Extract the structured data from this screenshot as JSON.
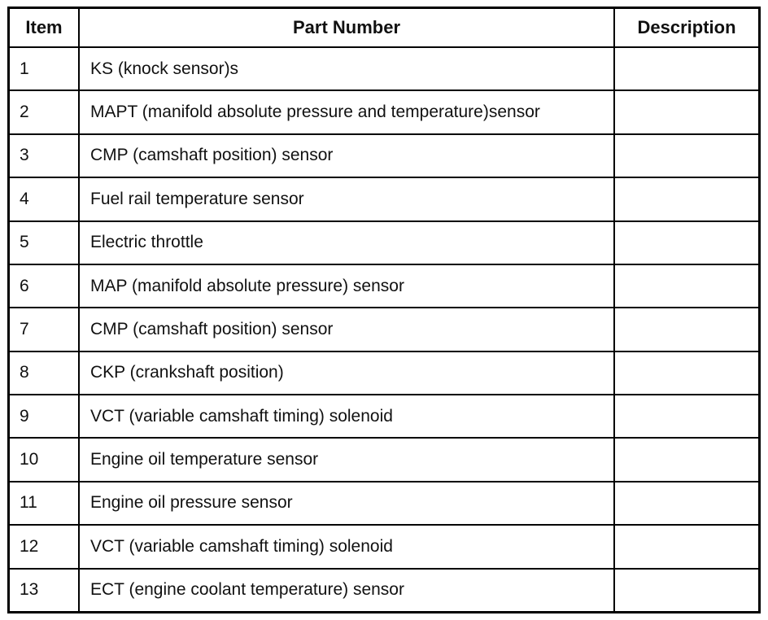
{
  "table": {
    "headers": {
      "item": "Item",
      "part_number": "Part Number",
      "description": "Description"
    },
    "rows": [
      {
        "item": "1",
        "part_number": "KS (knock sensor)s",
        "description": ""
      },
      {
        "item": "2",
        "part_number": "MAPT (manifold absolute pressure and temperature)sensor",
        "description": ""
      },
      {
        "item": "3",
        "part_number": "CMP (camshaft position) sensor",
        "description": ""
      },
      {
        "item": "4",
        "part_number": "Fuel rail temperature sensor",
        "description": ""
      },
      {
        "item": "5",
        "part_number": "Electric throttle",
        "description": ""
      },
      {
        "item": "6",
        "part_number": "MAP (manifold absolute pressure) sensor",
        "description": ""
      },
      {
        "item": "7",
        "part_number": "CMP (camshaft position) sensor",
        "description": ""
      },
      {
        "item": "8",
        "part_number": "CKP (crankshaft position)",
        "description": ""
      },
      {
        "item": "9",
        "part_number": "VCT (variable camshaft timing) solenoid",
        "description": ""
      },
      {
        "item": "10",
        "part_number": "Engine oil temperature sensor",
        "description": ""
      },
      {
        "item": "11",
        "part_number": "Engine oil pressure sensor",
        "description": ""
      },
      {
        "item": "12",
        "part_number": "VCT (variable camshaft timing) solenoid",
        "description": ""
      },
      {
        "item": "13",
        "part_number": "ECT (engine coolant temperature) sensor",
        "description": ""
      }
    ],
    "colors": {
      "border": "#000000",
      "text": "#111111",
      "background": "#ffffff"
    }
  }
}
